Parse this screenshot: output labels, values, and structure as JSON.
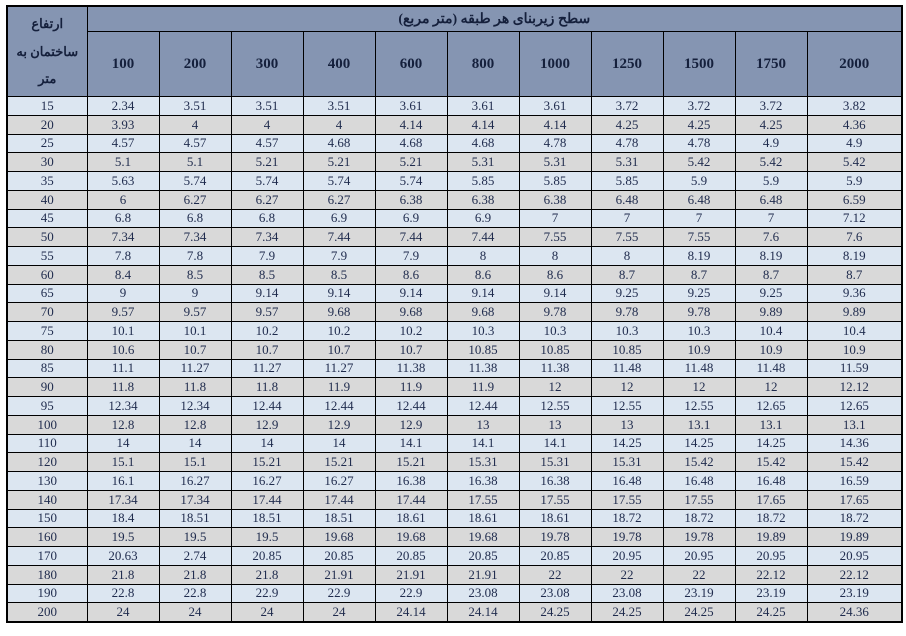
{
  "table": {
    "title": "سطح زیربنای هر طبقه (متر مربع)",
    "row_header_label": "ارتفاع ساختمان به متر",
    "column_headers": [
      "100",
      "200",
      "300",
      "400",
      "600",
      "800",
      "1000",
      "1250",
      "1500",
      "1750",
      "2000"
    ],
    "rows": [
      {
        "height": "15",
        "values": [
          "2.34",
          "3.51",
          "3.51",
          "3.51",
          "3.61",
          "3.61",
          "3.61",
          "3.72",
          "3.72",
          "3.72",
          "3.82"
        ]
      },
      {
        "height": "20",
        "values": [
          "3.93",
          "4",
          "4",
          "4",
          "4.14",
          "4.14",
          "4.14",
          "4.25",
          "4.25",
          "4.25",
          "4.36"
        ]
      },
      {
        "height": "25",
        "values": [
          "4.57",
          "4.57",
          "4.57",
          "4.68",
          "4.68",
          "4.68",
          "4.78",
          "4.78",
          "4.78",
          "4.9",
          "4.9"
        ]
      },
      {
        "height": "30",
        "values": [
          "5.1",
          "5.1",
          "5.21",
          "5.21",
          "5.21",
          "5.31",
          "5.31",
          "5.31",
          "5.42",
          "5.42",
          "5.42"
        ]
      },
      {
        "height": "35",
        "values": [
          "5.63",
          "5.74",
          "5.74",
          "5.74",
          "5.74",
          "5.85",
          "5.85",
          "5.85",
          "5.9",
          "5.9",
          "5.9"
        ]
      },
      {
        "height": "40",
        "values": [
          "6",
          "6.27",
          "6.27",
          "6.27",
          "6.38",
          "6.38",
          "6.38",
          "6.48",
          "6.48",
          "6.48",
          "6.59"
        ]
      },
      {
        "height": "45",
        "values": [
          "6.8",
          "6.8",
          "6.8",
          "6.9",
          "6.9",
          "6.9",
          "7",
          "7",
          "7",
          "7",
          "7.12"
        ]
      },
      {
        "height": "50",
        "values": [
          "7.34",
          "7.34",
          "7.34",
          "7.44",
          "7.44",
          "7.44",
          "7.55",
          "7.55",
          "7.55",
          "7.6",
          "7.6"
        ]
      },
      {
        "height": "55",
        "values": [
          "7.8",
          "7.8",
          "7.9",
          "7.9",
          "7.9",
          "8",
          "8",
          "8",
          "8.19",
          "8.19",
          "8.19"
        ]
      },
      {
        "height": "60",
        "values": [
          "8.4",
          "8.5",
          "8.5",
          "8.5",
          "8.6",
          "8.6",
          "8.6",
          "8.7",
          "8.7",
          "8.7",
          "8.7"
        ]
      },
      {
        "height": "65",
        "values": [
          "9",
          "9",
          "9.14",
          "9.14",
          "9.14",
          "9.14",
          "9.14",
          "9.25",
          "9.25",
          "9.25",
          "9.36"
        ]
      },
      {
        "height": "70",
        "values": [
          "9.57",
          "9.57",
          "9.57",
          "9.68",
          "9.68",
          "9.68",
          "9.78",
          "9.78",
          "9.78",
          "9.89",
          "9.89"
        ]
      },
      {
        "height": "75",
        "values": [
          "10.1",
          "10.1",
          "10.2",
          "10.2",
          "10.2",
          "10.3",
          "10.3",
          "10.3",
          "10.3",
          "10.4",
          "10.4"
        ]
      },
      {
        "height": "80",
        "values": [
          "10.6",
          "10.7",
          "10.7",
          "10.7",
          "10.7",
          "10.85",
          "10.85",
          "10.85",
          "10.9",
          "10.9",
          "10.9"
        ]
      },
      {
        "height": "85",
        "values": [
          "11.1",
          "11.27",
          "11.27",
          "11.27",
          "11.38",
          "11.38",
          "11.38",
          "11.48",
          "11.48",
          "11.48",
          "11.59"
        ]
      },
      {
        "height": "90",
        "values": [
          "11.8",
          "11.8",
          "11.8",
          "11.9",
          "11.9",
          "11.9",
          "12",
          "12",
          "12",
          "12",
          "12.12"
        ]
      },
      {
        "height": "95",
        "values": [
          "12.34",
          "12.34",
          "12.44",
          "12.44",
          "12.44",
          "12.44",
          "12.55",
          "12.55",
          "12.55",
          "12.65",
          "12.65"
        ]
      },
      {
        "height": "100",
        "values": [
          "12.8",
          "12.8",
          "12.9",
          "12.9",
          "12.9",
          "13",
          "13",
          "13",
          "13.1",
          "13.1",
          "13.1"
        ]
      },
      {
        "height": "110",
        "values": [
          "14",
          "14",
          "14",
          "14",
          "14.1",
          "14.1",
          "14.1",
          "14.25",
          "14.25",
          "14.25",
          "14.36"
        ]
      },
      {
        "height": "120",
        "values": [
          "15.1",
          "15.1",
          "15.21",
          "15.21",
          "15.21",
          "15.31",
          "15.31",
          "15.31",
          "15.42",
          "15.42",
          "15.42"
        ]
      },
      {
        "height": "130",
        "values": [
          "16.1",
          "16.27",
          "16.27",
          "16.27",
          "16.38",
          "16.38",
          "16.38",
          "16.48",
          "16.48",
          "16.48",
          "16.59"
        ]
      },
      {
        "height": "140",
        "values": [
          "17.34",
          "17.34",
          "17.44",
          "17.44",
          "17.44",
          "17.55",
          "17.55",
          "17.55",
          "17.55",
          "17.65",
          "17.65"
        ]
      },
      {
        "height": "150",
        "values": [
          "18.4",
          "18.51",
          "18.51",
          "18.51",
          "18.61",
          "18.61",
          "18.61",
          "18.72",
          "18.72",
          "18.72",
          "18.72"
        ]
      },
      {
        "height": "160",
        "values": [
          "19.5",
          "19.5",
          "19.5",
          "19.68",
          "19.68",
          "19.68",
          "19.78",
          "19.78",
          "19.78",
          "19.89",
          "19.89"
        ]
      },
      {
        "height": "170",
        "values": [
          "20.63",
          "2.74",
          "20.85",
          "20.85",
          "20.85",
          "20.85",
          "20.85",
          "20.95",
          "20.95",
          "20.95",
          "20.95"
        ]
      },
      {
        "height": "180",
        "values": [
          "21.8",
          "21.8",
          "21.8",
          "21.91",
          "21.91",
          "21.91",
          "22",
          "22",
          "22",
          "22.12",
          "22.12"
        ]
      },
      {
        "height": "190",
        "values": [
          "22.8",
          "22.8",
          "22.9",
          "22.9",
          "22.9",
          "23.08",
          "23.08",
          "23.08",
          "23.19",
          "23.19",
          "23.19"
        ]
      },
      {
        "height": "200",
        "values": [
          "24",
          "24",
          "24",
          "24",
          "24.14",
          "24.14",
          "24.25",
          "24.25",
          "24.25",
          "24.25",
          "24.36"
        ]
      }
    ]
  },
  "colors": {
    "header_bg": "#8595B2",
    "row_blue": "#DCE6F1",
    "row_gray": "#D9D9D9",
    "border": "#000000",
    "data_text": "#1F2B4D",
    "header_text": "#15203C"
  }
}
